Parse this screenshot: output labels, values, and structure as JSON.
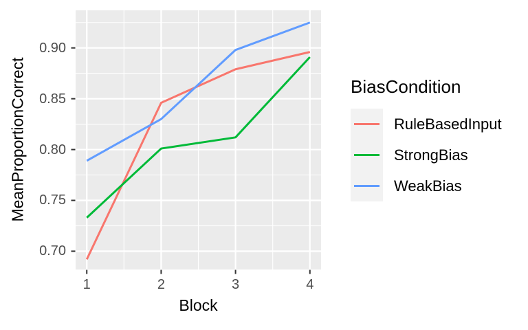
{
  "chart_data": {
    "type": "line",
    "x": [
      1,
      2,
      3,
      4
    ],
    "series": [
      {
        "name": "RuleBasedInput",
        "color": "#F8766D",
        "values": [
          0.692,
          0.846,
          0.879,
          0.896
        ]
      },
      {
        "name": "StrongBias",
        "color": "#00BA38",
        "values": [
          0.733,
          0.801,
          0.812,
          0.891
        ]
      },
      {
        "name": "WeakBias",
        "color": "#619CFF",
        "values": [
          0.789,
          0.83,
          0.898,
          0.925
        ]
      }
    ],
    "title": "",
    "xlabel": "Block",
    "ylabel": "MeanProportionCorrect",
    "legend_title": "BiasCondition",
    "legend_position": "right",
    "xlim": [
      0.85,
      4.15
    ],
    "ylim": [
      0.682,
      0.937
    ],
    "xticks": [
      1,
      2,
      3,
      4
    ],
    "xtick_labels": [
      "1",
      "2",
      "3",
      "4"
    ],
    "yticks": [
      0.7,
      0.75,
      0.8,
      0.85,
      0.9
    ],
    "ytick_labels": [
      "0.70",
      "0.75",
      "0.80",
      "0.85",
      "0.90"
    ],
    "grid": "major+minor",
    "colors": {
      "panel_bg": "#EBEBEB",
      "grid": "#FFFFFF",
      "legend_key_bg": "#F2F2F2",
      "tick_mark": "#333333",
      "tick_label": "#4D4D4D",
      "title_text": "#000000"
    }
  }
}
